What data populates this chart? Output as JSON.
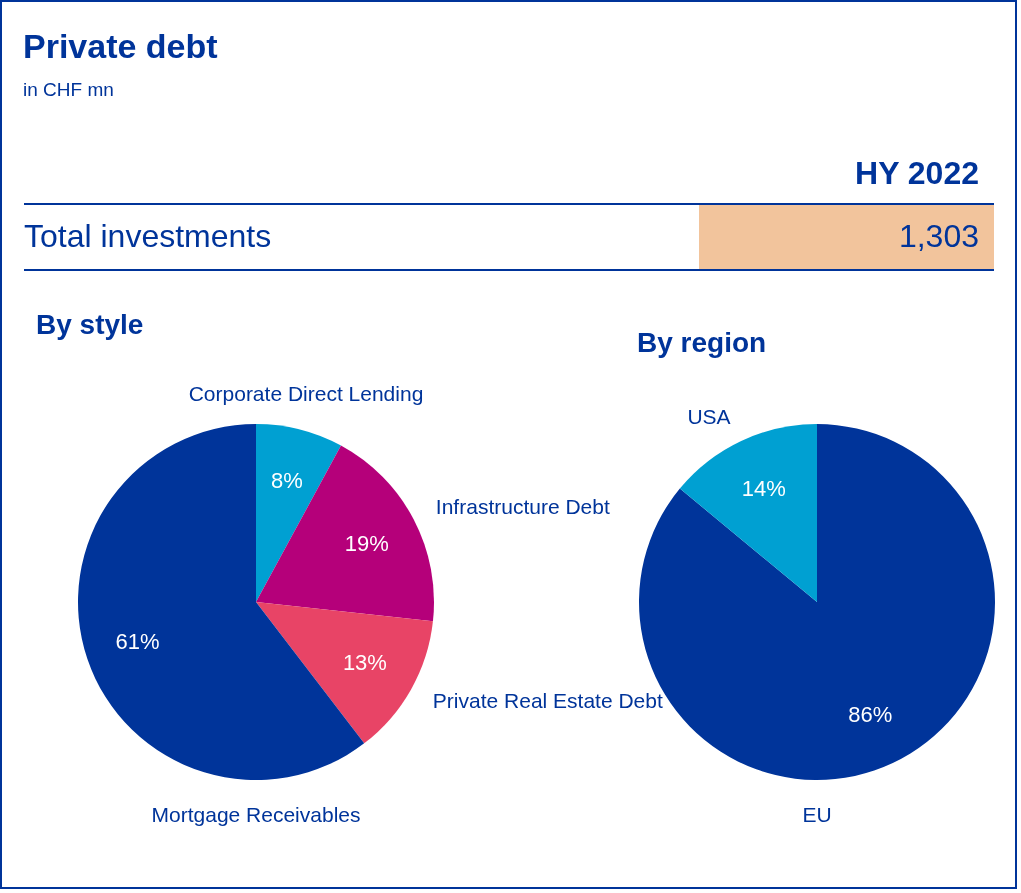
{
  "chart_data": [
    {
      "type": "other",
      "title": "Private debt",
      "subtitle": "in CHF mn",
      "annotations": [
        "HY 2022",
        "Total investments",
        "1,303"
      ]
    },
    {
      "type": "pie",
      "title": "By style",
      "categories": [
        "Corporate Direct Lending",
        "Infrastructure Debt",
        "Private Real Estate Debt",
        "Mortgage Receivables"
      ],
      "values": [
        8,
        19,
        13,
        61
      ],
      "colors": [
        "#00a0d2",
        "#b5007a",
        "#e84466",
        "#00349a"
      ],
      "value_labels": [
        "8%",
        "19%",
        "13%",
        "61%"
      ]
    },
    {
      "type": "pie",
      "title": "By region",
      "categories": [
        "EU",
        "USA"
      ],
      "values": [
        86,
        14
      ],
      "colors": [
        "#00349a",
        "#00a0d2"
      ],
      "value_labels": [
        "86%",
        "14%"
      ]
    }
  ]
}
